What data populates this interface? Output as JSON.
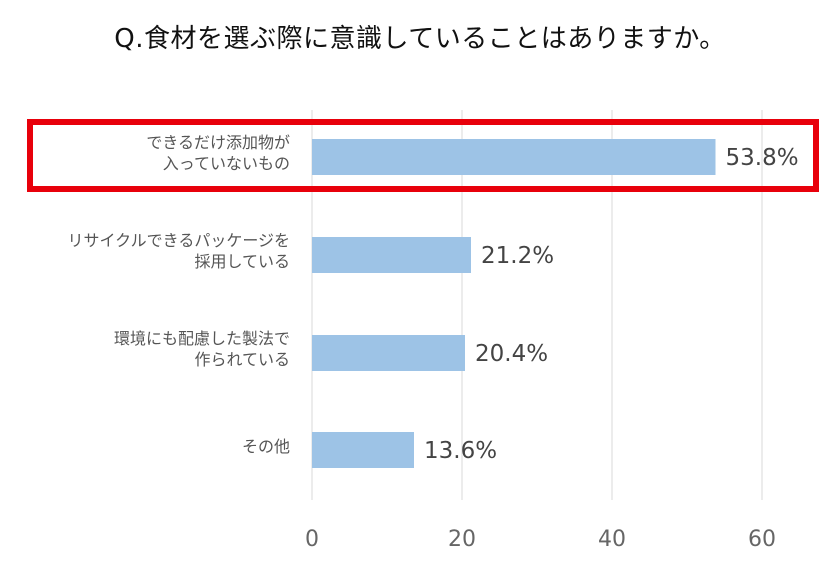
{
  "chart_data": {
    "type": "bar",
    "orientation": "horizontal",
    "title": "Q.食材を選ぶ際に意識していることはありますか。",
    "categories": [
      [
        "できるだけ添加物が",
        "入っていないもの"
      ],
      [
        "リサイクルできるパッケージを",
        "採用している"
      ],
      [
        "環境にも配慮した製法で",
        "作られている"
      ],
      [
        "その他"
      ]
    ],
    "values": [
      53.8,
      21.2,
      20.4,
      13.6
    ],
    "data_labels": [
      "53.8%",
      "21.2%",
      "20.4%",
      "13.6%"
    ],
    "xlim": [
      0,
      60
    ],
    "x_ticks": [
      "0",
      "20",
      "40",
      "60"
    ],
    "grid": true,
    "highlight_index": 0,
    "colors": {
      "bar": "#9dc3e6",
      "grid": "#d9d9d9",
      "highlight": "#e8000b",
      "tick": "#666666",
      "value": "#444444"
    }
  }
}
